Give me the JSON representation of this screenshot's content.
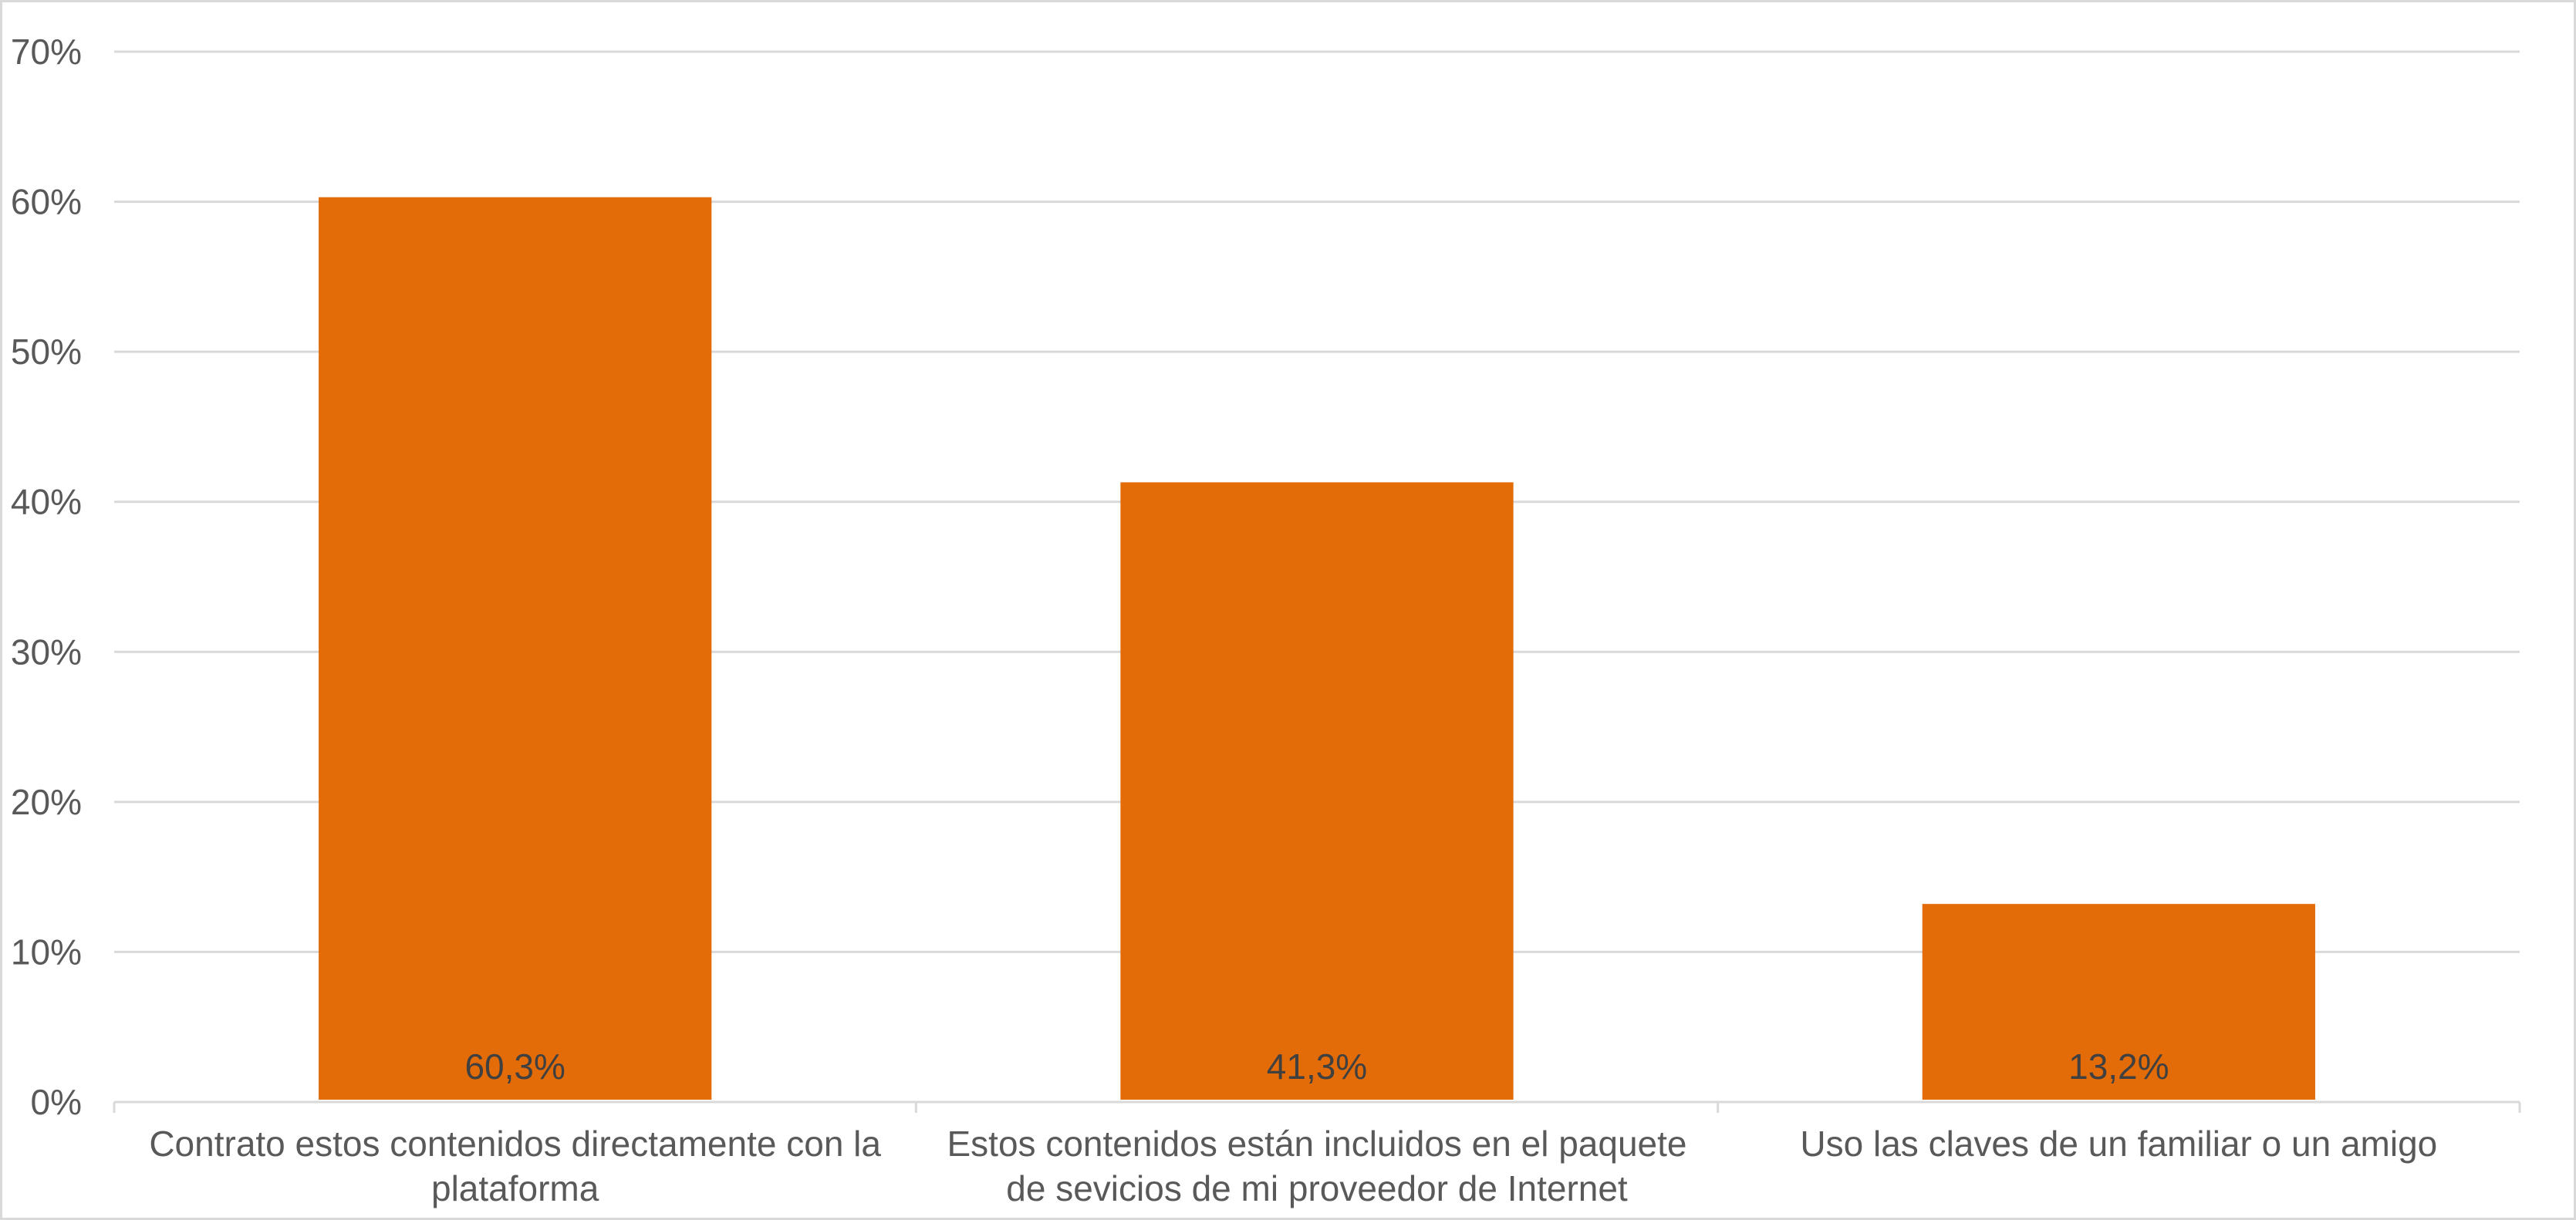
{
  "chart_data": {
    "type": "bar",
    "categories": [
      [
        "Contrato estos contenidos directamente con la",
        "plataforma"
      ],
      [
        "Estos contenidos están incluidos en el paquete",
        "de sevicios de mi proveedor de Internet"
      ],
      [
        "Uso las claves de un familiar o un amigo"
      ]
    ],
    "values": [
      60.3,
      41.3,
      13.2
    ],
    "data_labels": [
      "60,3%",
      "41,3%",
      "13,2%"
    ],
    "y_ticks": [
      0,
      10,
      20,
      30,
      40,
      50,
      60,
      70
    ],
    "y_tick_labels": [
      "0%",
      "10%",
      "20%",
      "30%",
      "40%",
      "50%",
      "60%",
      "70%"
    ],
    "ylim": [
      0,
      70
    ],
    "grid": true,
    "legend": "none",
    "colors": {
      "bar": "#e36c09",
      "grid": "#d9d9d9",
      "axis": "#d9d9d9",
      "text": "#595959"
    }
  }
}
